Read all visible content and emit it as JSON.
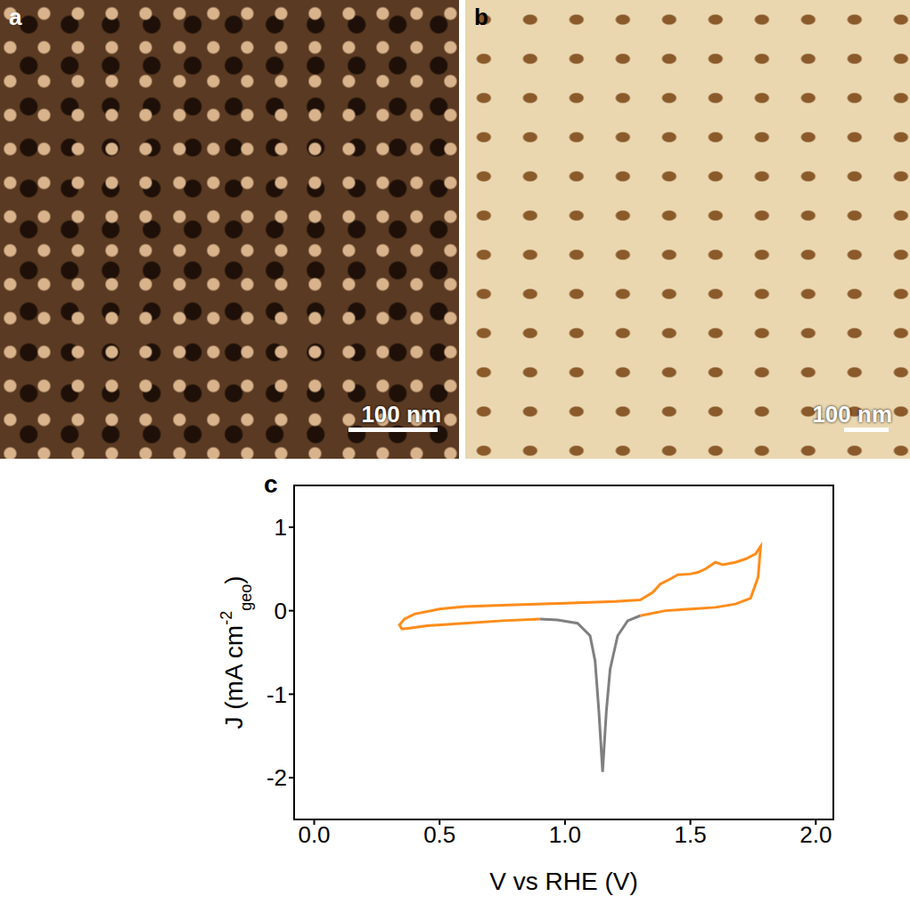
{
  "panels": [
    {
      "label": "a",
      "type": "image",
      "scale_bar": "100 nm"
    },
    {
      "label": "b",
      "type": "image",
      "scale_bar": "100 nm"
    }
  ],
  "chart_data": {
    "type": "line",
    "panel_label": "c",
    "xlabel": "V vs  RHE (V)",
    "ylabel": {
      "text": "J (mA cm",
      "sup": "-2",
      "sub": "geo",
      "end": ")"
    },
    "xlim": [
      -0.08,
      2.07
    ],
    "xticks": [
      {
        "value": 0,
        "label": "0.0"
      },
      0.5,
      {
        "value": 1,
        "label": "1.0"
      },
      1.5,
      {
        "value": 2,
        "label": "2.0"
      }
    ],
    "ylim": [
      -2.5,
      1.5
    ],
    "yticks": [
      -2,
      -1,
      0,
      1
    ],
    "grid": false,
    "series": [
      {
        "color": "#ff8c1a",
        "x": [
          0.9,
          0.75,
          0.6,
          0.45,
          0.38,
          0.35,
          0.34,
          0.36,
          0.4,
          0.5,
          0.6,
          0.8,
          1.0,
          1.2,
          1.3,
          1.35,
          1.38,
          1.42,
          1.45,
          1.5,
          1.53,
          1.56,
          1.6,
          1.63,
          1.68,
          1.72,
          1.76,
          1.78,
          1.77,
          1.74,
          1.68,
          1.6,
          1.5,
          1.4,
          1.3
        ],
        "values": [
          -0.1,
          -0.12,
          -0.15,
          -0.18,
          -0.21,
          -0.22,
          -0.17,
          -0.1,
          -0.04,
          0.02,
          0.05,
          0.07,
          0.09,
          0.11,
          0.13,
          0.22,
          0.32,
          0.38,
          0.43,
          0.44,
          0.46,
          0.5,
          0.58,
          0.55,
          0.58,
          0.62,
          0.68,
          0.77,
          0.4,
          0.15,
          0.08,
          0.04,
          0.02,
          0.0,
          -0.06
        ]
      },
      {
        "color": "#808080",
        "x": [
          1.3,
          1.25,
          1.21,
          1.18,
          1.165,
          1.15,
          1.135,
          1.12,
          1.1,
          1.05,
          0.97,
          0.9
        ],
        "values": [
          -0.06,
          -0.12,
          -0.3,
          -0.7,
          -1.2,
          -1.93,
          -1.2,
          -0.6,
          -0.3,
          -0.15,
          -0.11,
          -0.1
        ]
      }
    ]
  }
}
